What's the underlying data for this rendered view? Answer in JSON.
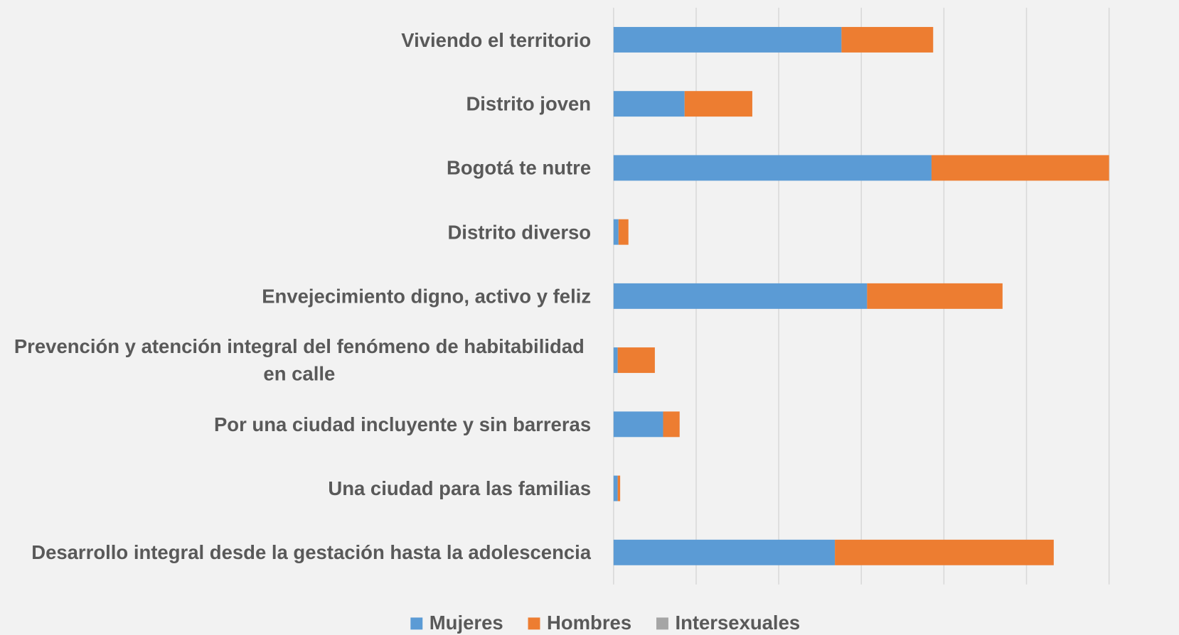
{
  "chart_data": {
    "type": "bar",
    "orientation": "horizontal",
    "stacked": true,
    "categories": [
      "Viviendo el territorio",
      "Distrito joven",
      "Bogotá te nutre",
      "Distrito diverso",
      "Envejecimiento digno, activo y feliz",
      "Prevención y atención integral del fenómeno de habitabilidad en calle",
      "Por una ciudad incluyente y sin barreras",
      "Una ciudad para las familias",
      "Desarrollo integral desde la gestación hasta la adolescencia"
    ],
    "series": [
      {
        "name": "Mujeres",
        "color": "#5b9bd5",
        "values": [
          2.76,
          0.86,
          3.85,
          0.06,
          3.07,
          0.05,
          0.6,
          0.05,
          2.68
        ]
      },
      {
        "name": "Hombres",
        "color": "#ed7d31",
        "values": [
          1.11,
          0.82,
          2.15,
          0.12,
          1.64,
          0.45,
          0.2,
          0.03,
          2.65
        ]
      },
      {
        "name": "Intersexuales",
        "color": "#a5a5a5",
        "values": [
          0,
          0,
          0,
          0,
          0,
          0,
          0,
          0,
          0
        ]
      }
    ],
    "xlim": [
      0,
      6
    ],
    "xticks": [
      0,
      1,
      2,
      3,
      4,
      5,
      6
    ],
    "grid": true,
    "legend": "bottom"
  }
}
